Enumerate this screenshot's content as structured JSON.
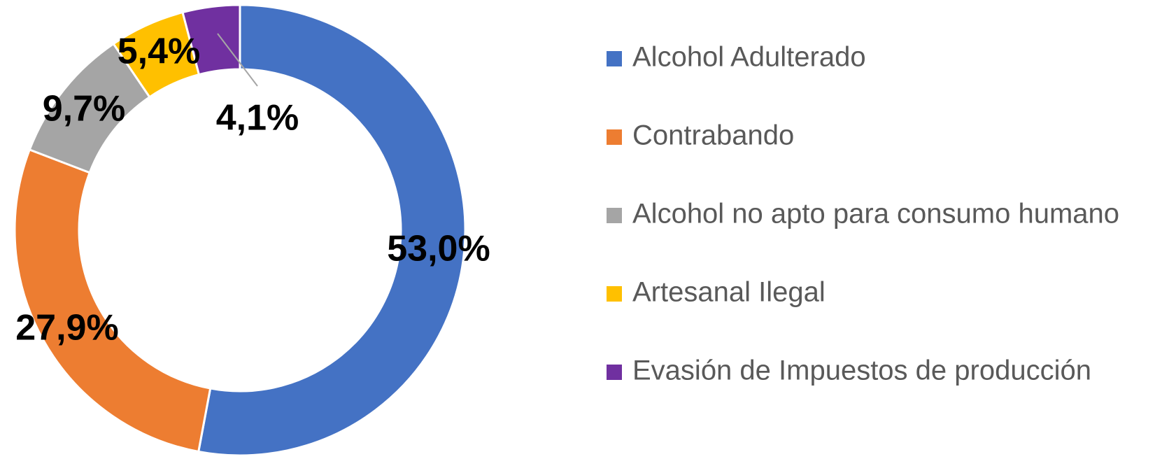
{
  "chart_data": {
    "type": "donut",
    "categories": [
      "Alcohol Adulterado",
      "Contrabando",
      "Alcohol no apto para consumo humano",
      "Artesanal Ilegal",
      "Evasión de Impuestos de producción"
    ],
    "values": [
      53.0,
      27.9,
      9.7,
      5.4,
      4.1
    ],
    "value_labels": [
      "53,0%",
      "27,9%",
      "9,7%",
      "5,4%",
      "4,1%"
    ],
    "colors": [
      "#4472c4",
      "#ed7d31",
      "#a5a5a5",
      "#ffc000",
      "#7030a0"
    ],
    "legend": "right"
  }
}
